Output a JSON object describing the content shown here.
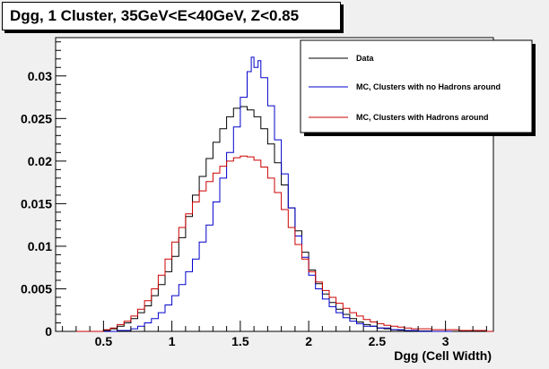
{
  "chart_data": {
    "type": "line",
    "title": "Dgg, 1 Cluster, 35GeV<E<40GeV, Z<0.85",
    "xlabel": "Dgg (Cell Width)",
    "ylabel": "",
    "xlim": [
      0.15,
      3.35
    ],
    "ylim": [
      0,
      0.0345
    ],
    "xticks": [
      {
        "value": 0.5,
        "label": "0.5"
      },
      {
        "value": 1,
        "label": "1"
      },
      {
        "value": 1.5,
        "label": "1.5"
      },
      {
        "value": 2,
        "label": "2"
      },
      {
        "value": 2.5,
        "label": "2.5"
      },
      {
        "value": 3,
        "label": "3"
      }
    ],
    "yticks": [
      {
        "value": 0,
        "label": "0"
      },
      {
        "value": 0.005,
        "label": "0.005"
      },
      {
        "value": 0.01,
        "label": "0.01"
      },
      {
        "value": 0.015,
        "label": "0.015"
      },
      {
        "value": 0.02,
        "label": "0.02"
      },
      {
        "value": 0.025,
        "label": "0.025"
      },
      {
        "value": 0.03,
        "label": "0.03"
      }
    ],
    "grid": false,
    "legend_position": "top-right",
    "series": [
      {
        "name": "Data",
        "color": "#000000",
        "x": [
          0.3,
          0.4,
          0.5,
          0.55,
          0.6,
          0.65,
          0.7,
          0.75,
          0.8,
          0.85,
          0.9,
          0.95,
          1.0,
          1.05,
          1.1,
          1.15,
          1.2,
          1.25,
          1.3,
          1.35,
          1.4,
          1.45,
          1.5,
          1.55,
          1.6,
          1.65,
          1.7,
          1.75,
          1.8,
          1.85,
          1.9,
          1.95,
          2.0,
          2.05,
          2.1,
          2.15,
          2.2,
          2.25,
          2.3,
          2.35,
          2.4,
          2.45,
          2.5,
          2.55,
          2.6,
          2.65,
          2.7,
          2.8,
          2.9,
          3.0,
          3.2
        ],
        "y": [
          0,
          0,
          0.0001,
          0.0003,
          0.0006,
          0.001,
          0.0015,
          0.0022,
          0.003,
          0.0042,
          0.0055,
          0.007,
          0.0088,
          0.011,
          0.0135,
          0.016,
          0.0182,
          0.0203,
          0.0222,
          0.0238,
          0.0252,
          0.0262,
          0.0264,
          0.026,
          0.0252,
          0.0238,
          0.022,
          0.0198,
          0.0172,
          0.0145,
          0.0118,
          0.0093,
          0.0072,
          0.0056,
          0.0044,
          0.0034,
          0.0026,
          0.002,
          0.0015,
          0.0011,
          0.0008,
          0.0006,
          0.0004,
          0.0003,
          0.0002,
          0.00015,
          0.0001,
          5e-05,
          0,
          0,
          0
        ]
      },
      {
        "name": "MC, Clusters with no Hadrons around",
        "color": "#0000cc",
        "x": [
          0.3,
          0.5,
          0.6,
          0.7,
          0.75,
          0.8,
          0.85,
          0.9,
          0.95,
          1.0,
          1.05,
          1.1,
          1.15,
          1.2,
          1.25,
          1.3,
          1.35,
          1.4,
          1.45,
          1.5,
          1.55,
          1.58,
          1.6,
          1.63,
          1.65,
          1.7,
          1.75,
          1.8,
          1.85,
          1.9,
          1.95,
          2.0,
          2.05,
          2.1,
          2.15,
          2.2,
          2.25,
          2.3,
          2.35,
          2.4,
          2.5,
          2.6,
          2.7,
          2.8,
          3.0
        ],
        "y": [
          0,
          0,
          0.0001,
          0.0003,
          0.0006,
          0.001,
          0.0015,
          0.0022,
          0.0031,
          0.0042,
          0.0055,
          0.007,
          0.0085,
          0.0105,
          0.0125,
          0.0152,
          0.018,
          0.021,
          0.024,
          0.0275,
          0.0305,
          0.0322,
          0.031,
          0.0318,
          0.0298,
          0.0265,
          0.0225,
          0.0185,
          0.0145,
          0.0112,
          0.0087,
          0.0066,
          0.005,
          0.0038,
          0.0029,
          0.0022,
          0.0016,
          0.0012,
          0.0009,
          0.0006,
          0.0004,
          0.0002,
          0.0001,
          0,
          0
        ]
      },
      {
        "name": "MC, Clusters with Hadrons around",
        "color": "#cc0000",
        "x": [
          0.3,
          0.45,
          0.5,
          0.55,
          0.6,
          0.65,
          0.7,
          0.75,
          0.8,
          0.85,
          0.9,
          0.95,
          1.0,
          1.05,
          1.1,
          1.15,
          1.2,
          1.25,
          1.3,
          1.35,
          1.4,
          1.45,
          1.5,
          1.55,
          1.6,
          1.65,
          1.7,
          1.75,
          1.8,
          1.85,
          1.9,
          1.95,
          2.0,
          2.05,
          2.1,
          2.15,
          2.2,
          2.25,
          2.3,
          2.35,
          2.4,
          2.45,
          2.5,
          2.55,
          2.6,
          2.65,
          2.7,
          2.75,
          2.8,
          2.9,
          3.0,
          3.1,
          3.2,
          3.3
        ],
        "y": [
          0,
          0,
          0.0002,
          0.0004,
          0.0008,
          0.0012,
          0.0018,
          0.0026,
          0.0036,
          0.005,
          0.0066,
          0.0085,
          0.0105,
          0.0122,
          0.0138,
          0.0152,
          0.0165,
          0.0176,
          0.0186,
          0.0194,
          0.02,
          0.0204,
          0.0206,
          0.0205,
          0.0201,
          0.0193,
          0.018,
          0.0163,
          0.0143,
          0.0122,
          0.0102,
          0.0085,
          0.007,
          0.0058,
          0.0048,
          0.004,
          0.0033,
          0.0027,
          0.0022,
          0.0018,
          0.0014,
          0.0011,
          0.0009,
          0.0007,
          0.0006,
          0.0005,
          0.0004,
          0.0003,
          0.0003,
          0.0002,
          0.0002,
          0.0001,
          0.0001,
          0
        ]
      }
    ]
  }
}
